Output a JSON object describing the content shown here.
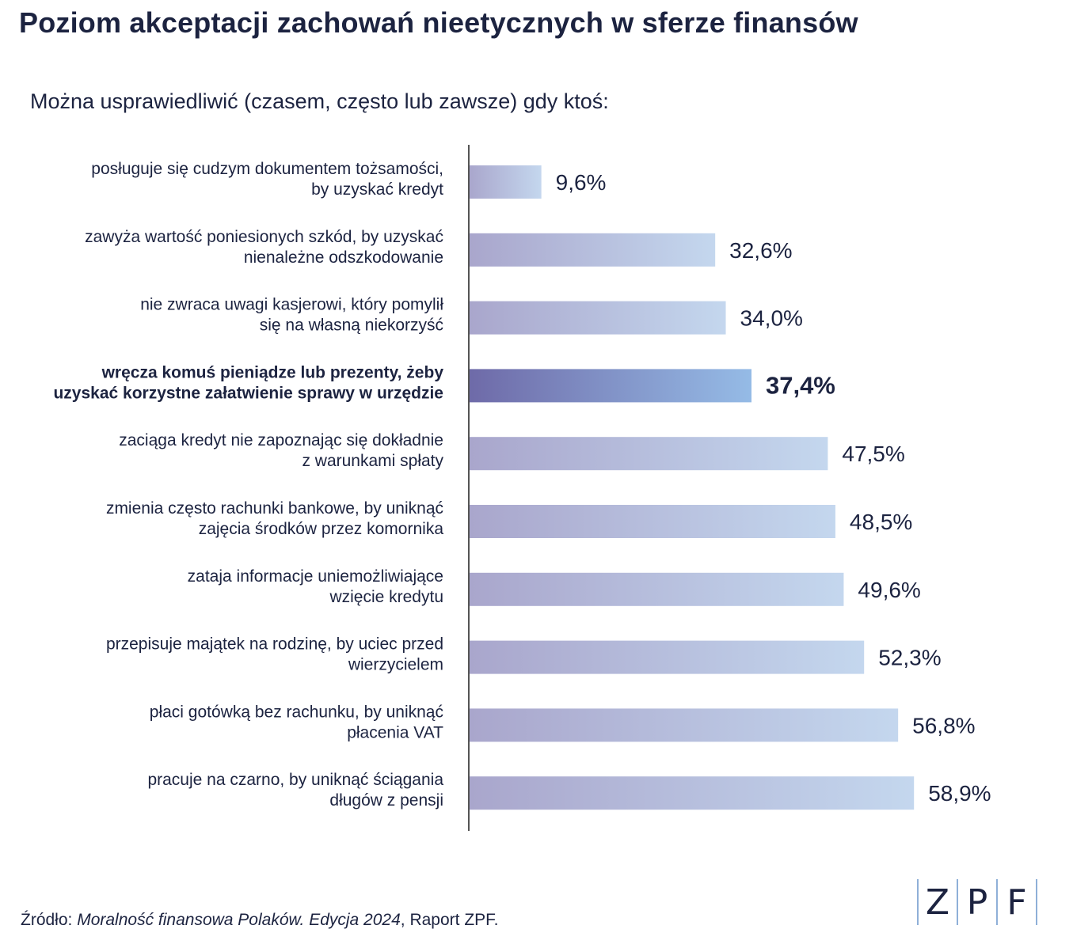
{
  "header": {
    "title": "Poziom akceptacji zachowań nieetycznych w sferze finansów",
    "subtitle": "Można usprawiedliwić (czasem, często lub zawsze) gdy ktoś:"
  },
  "chart_data": {
    "type": "bar",
    "orientation": "horizontal",
    "title": "Poziom akceptacji zachowań nieetycznych w sferze finansów",
    "subtitle": "Można usprawiedliwić (czasem, często lub zawsze) gdy ktoś:",
    "unit": "%",
    "categories": [
      [
        "posługuje się cudzym dokumentem tożsamości,",
        "by uzyskać kredyt"
      ],
      [
        "zawyża wartość poniesionych szkód, by uzyskać",
        "nienależne odszkodowanie"
      ],
      [
        "nie zwraca uwagi kasjerowi, który pomylił",
        "się na własną niekorzyść"
      ],
      [
        "wręcza komuś pieniądze lub prezenty, żeby",
        "uzyskać korzystne załatwienie sprawy w urzędzie"
      ],
      [
        "zaciąga kredyt nie zapoznając się dokładnie",
        "z warunkami spłaty"
      ],
      [
        "zmienia często rachunki bankowe, by uniknąć",
        "zajęcia środków przez komornika"
      ],
      [
        "zataja informacje uniemożliwiające",
        "wzięcie kredytu"
      ],
      [
        "przepisuje majątek na rodzinę, by uciec przed",
        "wierzycielem"
      ],
      [
        "płaci gotówką bez rachunku, by uniknąć",
        "płacenia VAT"
      ],
      [
        "pracuje na czarno, by uniknąć ściągania",
        "długów z pensji"
      ]
    ],
    "values": [
      9.6,
      32.6,
      34.0,
      37.4,
      47.5,
      48.5,
      49.6,
      52.3,
      56.8,
      58.9
    ],
    "value_labels": [
      "9,6%",
      "32,6%",
      "34,0%",
      "37,4%",
      "47,5%",
      "48,5%",
      "49,6%",
      "52,3%",
      "56,8%",
      "58,9%"
    ],
    "highlight_index": 3,
    "xlim": [
      0,
      100
    ],
    "grid": false,
    "legend": "none",
    "colors": {
      "bar_start": "#a9a6cc",
      "bar_end": "#c4d7ee",
      "highlight_start": "#6e6aa8",
      "highlight_end": "#95bbe6",
      "axis": "#555555",
      "text": "#1c2340"
    }
  },
  "footer": {
    "source_prefix": "Źródło: ",
    "source_title": "Moralność finansowa Polaków. Edycja 2024",
    "source_suffix": ", Raport ZPF."
  },
  "logo": {
    "letters": [
      "Z",
      "P",
      "F"
    ]
  }
}
